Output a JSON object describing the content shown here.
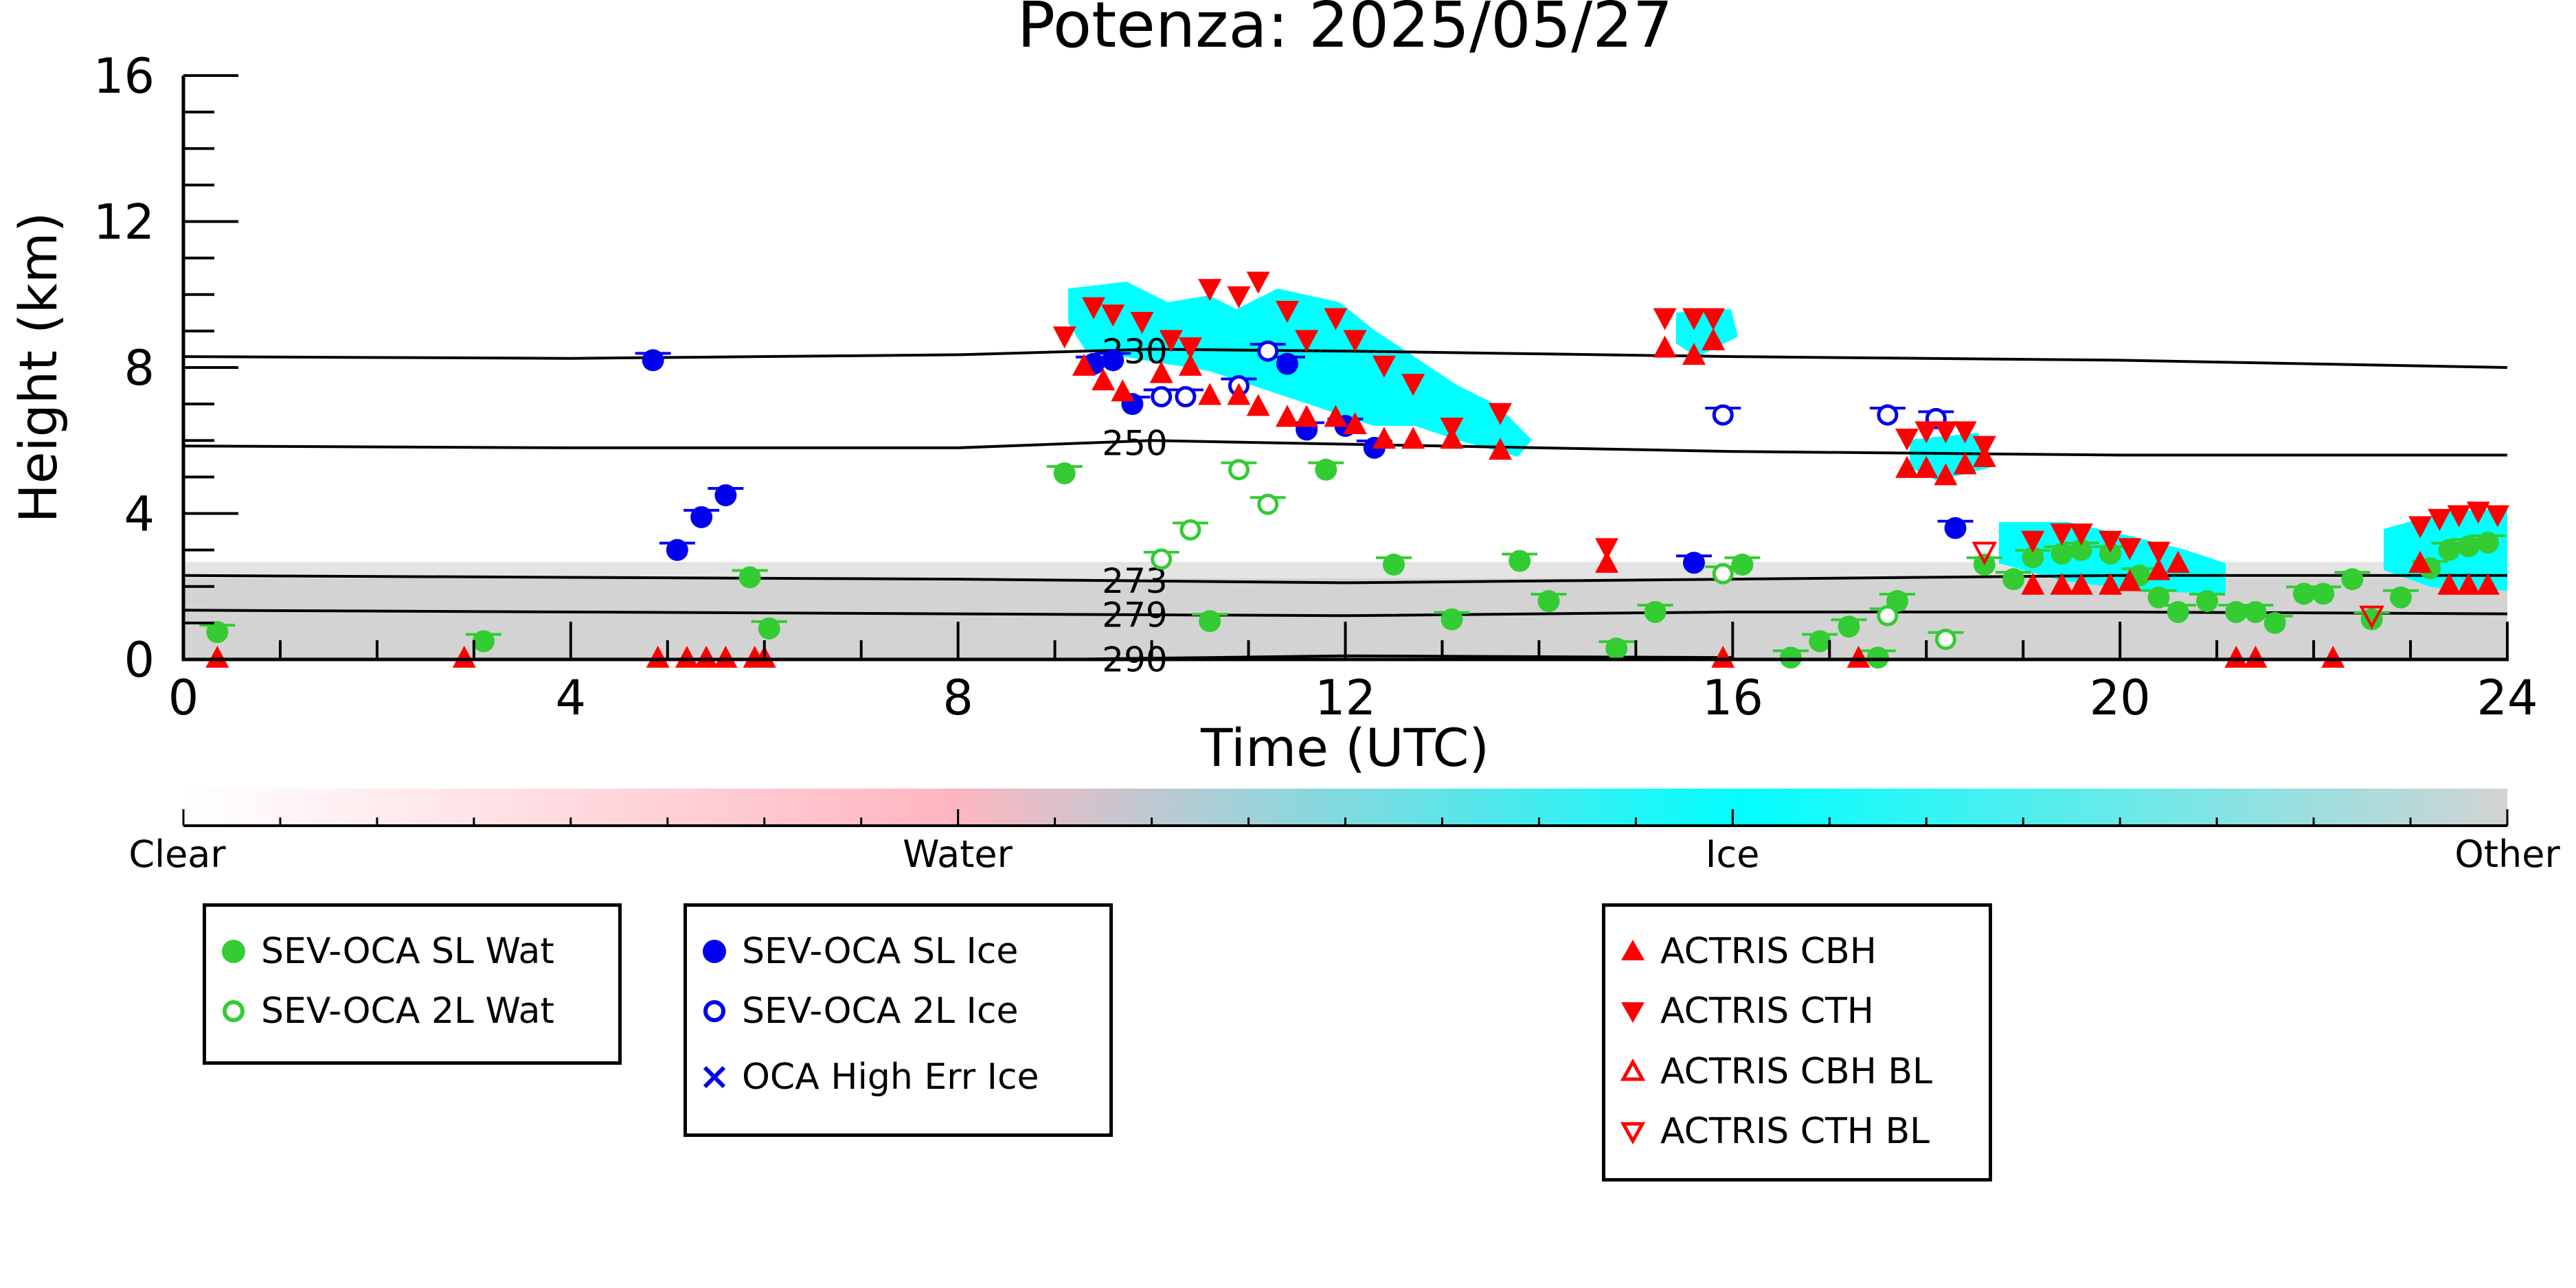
{
  "chart_data": {
    "type": "scatter",
    "title": "Potenza: 2025/05/27",
    "xlabel": "Time (UTC)",
    "ylabel": "Height (km)",
    "xlim": [
      0,
      24
    ],
    "ylim": [
      0,
      16
    ],
    "xticks": [
      "0",
      "4",
      "8",
      "12",
      "16",
      "20",
      "24"
    ],
    "yticks": [
      "0",
      "4",
      "8",
      "12",
      "16"
    ],
    "colorbar": {
      "labels": [
        "Clear",
        "Water",
        "Ice",
        "Other"
      ],
      "colors": [
        "#ffffff",
        "#ffb6c1",
        "#00ffff",
        "#d3d3d3"
      ]
    },
    "isotherms": [
      {
        "label": "230",
        "points": [
          [
            0,
            8.3
          ],
          [
            4,
            8.25
          ],
          [
            8,
            8.35
          ],
          [
            10,
            8.5
          ],
          [
            12,
            8.45
          ],
          [
            16,
            8.3
          ],
          [
            20,
            8.2
          ],
          [
            24,
            8.0
          ]
        ]
      },
      {
        "label": "250",
        "points": [
          [
            0,
            5.85
          ],
          [
            4,
            5.8
          ],
          [
            8,
            5.8
          ],
          [
            10,
            6.0
          ],
          [
            12,
            5.9
          ],
          [
            16,
            5.7
          ],
          [
            20,
            5.6
          ],
          [
            24,
            5.6
          ]
        ]
      },
      {
        "label": "273",
        "points": [
          [
            0,
            2.3
          ],
          [
            4,
            2.25
          ],
          [
            8,
            2.2
          ],
          [
            12,
            2.1
          ],
          [
            16,
            2.2
          ],
          [
            20,
            2.3
          ],
          [
            24,
            2.3
          ]
        ]
      },
      {
        "label": "279",
        "points": [
          [
            0,
            1.35
          ],
          [
            4,
            1.3
          ],
          [
            8,
            1.25
          ],
          [
            12,
            1.2
          ],
          [
            16,
            1.3
          ],
          [
            20,
            1.3
          ],
          [
            24,
            1.25
          ]
        ]
      },
      {
        "label": "290",
        "points": [
          [
            9,
            0.0
          ],
          [
            12,
            0.1
          ],
          [
            16,
            0.05
          ]
        ]
      }
    ],
    "series": [
      {
        "name": "SEV-OCA SL Wat",
        "color": "#33cc33",
        "marker": "filled-circle",
        "points": [
          [
            0.35,
            0.75
          ],
          [
            3.1,
            0.5
          ],
          [
            5.85,
            2.25
          ],
          [
            6.05,
            0.85
          ],
          [
            9.1,
            5.1
          ],
          [
            10.6,
            1.05
          ],
          [
            11.8,
            5.2
          ],
          [
            12.5,
            2.6
          ],
          [
            13.1,
            1.1
          ],
          [
            13.8,
            2.7
          ],
          [
            14.1,
            1.6
          ],
          [
            14.8,
            0.3
          ],
          [
            15.2,
            1.3
          ],
          [
            16.1,
            2.6
          ],
          [
            16.6,
            0.05
          ],
          [
            16.9,
            0.5
          ],
          [
            17.2,
            0.9
          ],
          [
            17.5,
            0.05
          ],
          [
            17.7,
            1.6
          ],
          [
            18.6,
            2.6
          ],
          [
            18.9,
            2.2
          ],
          [
            19.1,
            2.8
          ],
          [
            19.4,
            2.9
          ],
          [
            19.6,
            3.0
          ],
          [
            19.9,
            2.9
          ],
          [
            20.2,
            2.3
          ],
          [
            20.4,
            1.7
          ],
          [
            20.6,
            1.3
          ],
          [
            20.9,
            1.6
          ],
          [
            21.2,
            1.3
          ],
          [
            21.4,
            1.3
          ],
          [
            21.6,
            1.0
          ],
          [
            21.9,
            1.8
          ],
          [
            22.1,
            1.8
          ],
          [
            22.4,
            2.2
          ],
          [
            22.6,
            1.1
          ],
          [
            22.9,
            1.7
          ],
          [
            23.2,
            2.5
          ],
          [
            23.4,
            3.0
          ],
          [
            23.6,
            3.1
          ],
          [
            23.8,
            3.2
          ]
        ]
      },
      {
        "name": "SEV-OCA 2L Wat",
        "color": "#33cc33",
        "marker": "open-circle",
        "points": [
          [
            10.1,
            2.75
          ],
          [
            10.4,
            3.55
          ],
          [
            10.9,
            5.2
          ],
          [
            11.2,
            4.25
          ],
          [
            15.9,
            2.35
          ],
          [
            17.6,
            1.2
          ],
          [
            18.2,
            0.55
          ]
        ]
      },
      {
        "name": "SEV-OCA SL Ice",
        "color": "#0000ee",
        "marker": "filled-circle",
        "points": [
          [
            4.85,
            8.2
          ],
          [
            5.1,
            3.0
          ],
          [
            5.35,
            3.9
          ],
          [
            5.6,
            4.5
          ],
          [
            9.4,
            8.1
          ],
          [
            9.6,
            8.2
          ],
          [
            9.8,
            7.0
          ],
          [
            11.4,
            8.1
          ],
          [
            11.6,
            6.3
          ],
          [
            12.0,
            6.4
          ],
          [
            12.3,
            5.8
          ],
          [
            15.6,
            2.65
          ],
          [
            18.3,
            3.6
          ]
        ]
      },
      {
        "name": "SEV-OCA 2L Ice",
        "color": "#0000ee",
        "marker": "open-circle",
        "points": [
          [
            10.1,
            7.2
          ],
          [
            10.35,
            7.2
          ],
          [
            10.9,
            7.5
          ],
          [
            11.2,
            8.45
          ],
          [
            15.9,
            6.7
          ],
          [
            17.6,
            6.7
          ],
          [
            18.1,
            6.6
          ]
        ]
      },
      {
        "name": "OCA High Err Ice",
        "color": "#0000ee",
        "marker": "cross",
        "points": []
      },
      {
        "name": "ACTRIS CBH",
        "color": "#ff0000",
        "marker": "filled-triangle-up",
        "points": [
          [
            9.3,
            8.0
          ],
          [
            9.5,
            7.6
          ],
          [
            9.7,
            7.3
          ],
          [
            10.1,
            7.8
          ],
          [
            10.4,
            8.0
          ],
          [
            10.6,
            7.2
          ],
          [
            10.9,
            7.2
          ],
          [
            11.1,
            6.9
          ],
          [
            11.4,
            6.6
          ],
          [
            11.6,
            6.6
          ],
          [
            11.9,
            6.6
          ],
          [
            12.1,
            6.4
          ],
          [
            12.4,
            6.0
          ],
          [
            12.7,
            6.0
          ],
          [
            13.1,
            6.0
          ],
          [
            13.6,
            5.7
          ],
          [
            14.7,
            2.6
          ],
          [
            15.3,
            8.5
          ],
          [
            15.6,
            8.3
          ],
          [
            15.8,
            8.7
          ],
          [
            17.8,
            5.2
          ],
          [
            18.0,
            5.2
          ],
          [
            18.2,
            5.0
          ],
          [
            18.4,
            5.3
          ],
          [
            18.6,
            5.5
          ],
          [
            19.1,
            2.0
          ],
          [
            19.4,
            2.0
          ],
          [
            19.6,
            2.0
          ],
          [
            19.9,
            2.0
          ],
          [
            20.1,
            2.1
          ],
          [
            20.4,
            2.4
          ],
          [
            20.6,
            2.6
          ],
          [
            23.1,
            2.6
          ],
          [
            23.4,
            2.0
          ],
          [
            23.6,
            2.0
          ],
          [
            23.8,
            2.0
          ],
          [
            0.35,
            0.0
          ],
          [
            2.9,
            0.0
          ],
          [
            4.9,
            0.0
          ],
          [
            5.2,
            0.0
          ],
          [
            5.4,
            0.0
          ],
          [
            5.6,
            0.0
          ],
          [
            5.9,
            0.0
          ],
          [
            6.0,
            0.0
          ],
          [
            15.9,
            0.0
          ],
          [
            17.3,
            0.0
          ],
          [
            21.2,
            0.0
          ],
          [
            21.4,
            0.0
          ],
          [
            22.2,
            0.0
          ]
        ]
      },
      {
        "name": "ACTRIS CTH",
        "color": "#ff0000",
        "marker": "filled-triangle-down",
        "points": [
          [
            9.1,
            8.9
          ],
          [
            9.4,
            9.7
          ],
          [
            9.6,
            9.5
          ],
          [
            9.9,
            9.3
          ],
          [
            10.2,
            8.8
          ],
          [
            10.4,
            8.6
          ],
          [
            10.6,
            10.2
          ],
          [
            10.9,
            10.0
          ],
          [
            11.1,
            10.4
          ],
          [
            11.4,
            9.6
          ],
          [
            11.6,
            8.8
          ],
          [
            11.9,
            9.4
          ],
          [
            12.1,
            8.8
          ],
          [
            12.4,
            8.1
          ],
          [
            12.7,
            7.6
          ],
          [
            13.1,
            6.4
          ],
          [
            13.6,
            6.8
          ],
          [
            14.7,
            3.1
          ],
          [
            15.3,
            9.4
          ],
          [
            15.6,
            9.4
          ],
          [
            15.8,
            9.4
          ],
          [
            17.8,
            6.1
          ],
          [
            18.0,
            6.3
          ],
          [
            18.2,
            6.3
          ],
          [
            18.4,
            6.3
          ],
          [
            18.6,
            5.9
          ],
          [
            19.1,
            3.3
          ],
          [
            19.4,
            3.5
          ],
          [
            19.6,
            3.5
          ],
          [
            19.9,
            3.3
          ],
          [
            20.1,
            3.1
          ],
          [
            20.4,
            3.0
          ],
          [
            23.1,
            3.7
          ],
          [
            23.3,
            3.9
          ],
          [
            23.5,
            4.0
          ],
          [
            23.7,
            4.1
          ],
          [
            23.9,
            4.0
          ]
        ]
      },
      {
        "name": "ACTRIS CBH BL",
        "color": "#ff0000",
        "marker": "open-triangle-up",
        "points": []
      },
      {
        "name": "ACTRIS CTH BL",
        "color": "#ff0000",
        "marker": "open-triangle-down",
        "points": [
          [
            18.6,
            3.0
          ],
          [
            22.6,
            1.25
          ]
        ]
      }
    ],
    "grid": false
  },
  "legends": {
    "wat": [
      "SEV-OCA SL Wat",
      "SEV-OCA 2L Wat"
    ],
    "ice": [
      "SEV-OCA SL Ice",
      "SEV-OCA 2L Ice",
      "OCA High Err Ice"
    ],
    "actris": [
      "ACTRIS CBH",
      "ACTRIS CTH",
      "ACTRIS CBH BL",
      "ACTRIS CTH BL"
    ]
  }
}
